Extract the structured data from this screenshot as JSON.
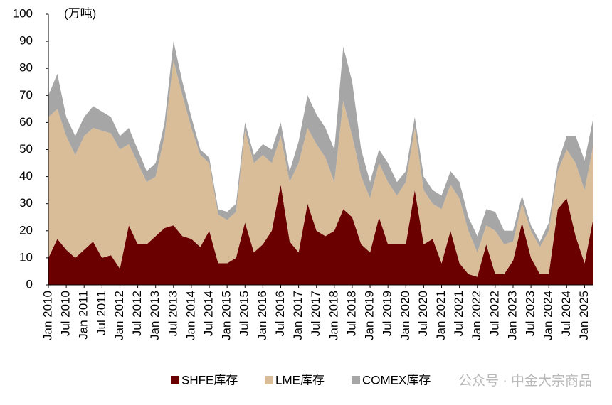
{
  "chart_data": {
    "type": "stacked_area",
    "unit_label": "(万吨)",
    "watermark": "公众号 · 中金大宗商品",
    "categories": [
      "Jan 2010",
      null,
      "Jul 2010",
      null,
      "Jan 2011",
      null,
      "Jul 2011",
      null,
      "Jan 2012",
      null,
      "Jul 2012",
      null,
      "Jan 2013",
      null,
      "Jul 2013",
      null,
      "Jan 2014",
      null,
      "Jul 2014",
      null,
      "Jan 2015",
      null,
      "Jul 2015",
      null,
      "Jan 2016",
      null,
      "Jul 2016",
      null,
      "Jan 2017",
      null,
      "Jul 2017",
      null,
      "Jan 2018",
      null,
      "Jul 2018",
      null,
      "Jan 2019",
      null,
      "Jul 2019",
      null,
      "Jan 2020",
      null,
      "Jul 2020",
      null,
      "Jan 2021",
      null,
      "Jul 2021",
      null,
      "Jan 2022",
      null,
      "Jul 2022",
      null,
      "Jan 2023",
      null,
      "Jul 2023",
      null,
      "Jan 2024",
      null,
      "Jul 2024",
      null,
      "Jan 2025",
      null
    ],
    "series": [
      {
        "name": "SHFE库存",
        "color": "#6b0000",
        "values": [
          10,
          17,
          13,
          10,
          13,
          16,
          10,
          11,
          6,
          22,
          15,
          15,
          18,
          21,
          22,
          18,
          17,
          14,
          20,
          8,
          8,
          10,
          23,
          12,
          15,
          20,
          37,
          16,
          12,
          30,
          20,
          18,
          20,
          28,
          25,
          15,
          12,
          25,
          15,
          15,
          15,
          35,
          15,
          17,
          8,
          20,
          8,
          4,
          3,
          15,
          4,
          4,
          9,
          23,
          10,
          4,
          4,
          28,
          32,
          18,
          8,
          25
        ]
      },
      {
        "name": "LME库存",
        "color": "#d9bd99",
        "values": [
          52,
          48,
          42,
          38,
          42,
          42,
          47,
          45,
          44,
          30,
          30,
          23,
          22,
          34,
          61,
          52,
          41,
          34,
          25,
          18,
          16,
          17,
          34,
          33,
          33,
          25,
          18,
          22,
          33,
          28,
          32,
          29,
          18,
          40,
          30,
          25,
          20,
          20,
          23,
          18,
          23,
          23,
          20,
          13,
          20,
          17,
          24,
          16,
          9,
          7,
          16,
          11,
          7,
          7,
          10,
          10,
          16,
          14,
          18,
          27,
          27,
          27
        ]
      },
      {
        "name": "COMEX库存",
        "color": "#a6a6a6",
        "values": [
          8,
          13,
          7,
          7,
          7,
          8,
          7,
          6,
          5,
          6,
          5,
          4,
          5,
          5,
          7,
          5,
          4,
          2,
          2,
          2,
          3,
          3,
          3,
          3,
          4,
          5,
          5,
          4,
          8,
          12,
          11,
          11,
          12,
          20,
          20,
          10,
          6,
          5,
          7,
          5,
          4,
          4,
          5,
          5,
          5,
          5,
          6,
          5,
          6,
          6,
          7,
          5,
          4,
          3,
          2,
          2,
          3,
          3,
          5,
          10,
          11,
          10
        ]
      }
    ],
    "ylim": [
      0,
      100
    ],
    "yticks": [
      0,
      10,
      20,
      30,
      40,
      50,
      60,
      70,
      80,
      90,
      100
    ],
    "grid": false
  }
}
